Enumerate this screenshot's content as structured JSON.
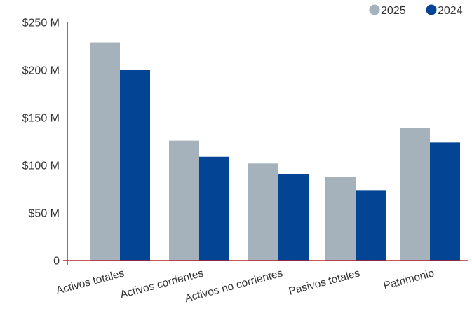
{
  "chart_data": {
    "type": "bar",
    "categories": [
      "Activos totales",
      "Activos corrientes",
      "Activos no corrientes",
      "Pasivos totales",
      "Patrimonio"
    ],
    "series": [
      {
        "name": "2025",
        "color": "#a5b2bb",
        "values": [
          229,
          126,
          102,
          88,
          139
        ]
      },
      {
        "name": "2024",
        "color": "#034594",
        "values": [
          200,
          109,
          91,
          74,
          124
        ]
      }
    ],
    "ylim": [
      0,
      250
    ],
    "y_ticks": [
      {
        "value": 0,
        "label": "0"
      },
      {
        "value": 50,
        "label": "$50 M"
      },
      {
        "value": 100,
        "label": "$100 M"
      },
      {
        "value": 150,
        "label": "$150 M"
      },
      {
        "value": 200,
        "label": "$200 M"
      },
      {
        "value": 250,
        "label": "$250 M"
      }
    ],
    "axis_color": "#b5202e",
    "grid": false,
    "legend_position": "top-right",
    "xlabel": "",
    "ylabel": ""
  }
}
